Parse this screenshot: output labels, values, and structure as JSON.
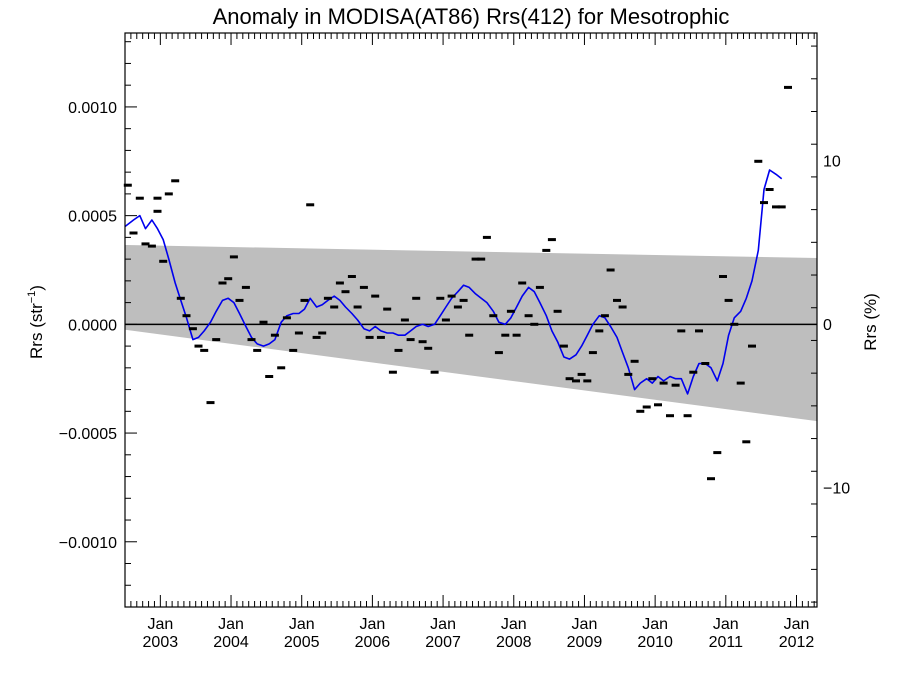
{
  "chart_data": {
    "type": "line",
    "title": "Anomaly in MODISA(AT86) Rrs(412) for Mesotrophic",
    "ylabel_main": "Rrs (str",
    "ylabel_sup": "−1",
    "ylabel_close": ")",
    "ylabel_right": "Rrs (%)",
    "xlim": [
      2002.5,
      2012.29
    ],
    "ylim": [
      -0.0013,
      0.00134
    ],
    "y2lim": [
      -17.3,
      17.8
    ],
    "y_ticks": [
      {
        "value": 0.001,
        "label": "0.0010"
      },
      {
        "value": 0.0005,
        "label": "0.0005"
      },
      {
        "value": 0.0,
        "label": "0.0000"
      },
      {
        "value": -0.0005,
        "label": "−0.0005"
      },
      {
        "value": -0.001,
        "label": "−0.0010"
      }
    ],
    "y2_ticks": [
      {
        "value": 10,
        "label": "10"
      },
      {
        "value": 0,
        "label": "0"
      },
      {
        "value": -10,
        "label": "−10"
      }
    ],
    "x_ticks": [
      {
        "value": 2003.0,
        "line1": "Jan",
        "line2": "2003"
      },
      {
        "value": 2004.0,
        "line1": "Jan",
        "line2": "2004"
      },
      {
        "value": 2005.0,
        "line1": "Jan",
        "line2": "2005"
      },
      {
        "value": 2006.0,
        "line1": "Jan",
        "line2": "2006"
      },
      {
        "value": 2007.0,
        "line1": "Jan",
        "line2": "2007"
      },
      {
        "value": 2008.0,
        "line1": "Jan",
        "line2": "2008"
      },
      {
        "value": 2009.0,
        "line1": "Jan",
        "line2": "2009"
      },
      {
        "value": 2010.0,
        "line1": "Jan",
        "line2": "2010"
      },
      {
        "value": 2011.0,
        "line1": "Jan",
        "line2": "2011"
      },
      {
        "value": 2012.0,
        "line1": "Jan",
        "line2": "2012"
      }
    ],
    "band": {
      "color": "#bebebe",
      "upper": [
        [
          2002.5,
          0.000365
        ],
        [
          2012.29,
          0.000305
        ]
      ],
      "lower": [
        [
          2002.5,
          -2.5e-05
        ],
        [
          2012.29,
          -0.000445
        ]
      ]
    },
    "monthly_points": [
      [
        2002.54,
        0.00064
      ],
      [
        2002.62,
        0.00042
      ],
      [
        2002.71,
        0.00058
      ],
      [
        2002.79,
        0.00037
      ],
      [
        2002.88,
        0.00036
      ],
      [
        2002.96,
        0.00052
      ],
      [
        2002.96,
        0.00058
      ],
      [
        2003.04,
        0.00029
      ],
      [
        2003.12,
        0.0006
      ],
      [
        2003.21,
        0.00066
      ],
      [
        2003.29,
        0.00012
      ],
      [
        2003.37,
        4e-05
      ],
      [
        2003.46,
        -2e-05
      ],
      [
        2003.54,
        -0.0001
      ],
      [
        2003.62,
        -0.00012
      ],
      [
        2003.71,
        -0.00036
      ],
      [
        2003.79,
        -7e-05
      ],
      [
        2003.88,
        0.00019
      ],
      [
        2003.96,
        0.00021
      ],
      [
        2004.04,
        0.00031
      ],
      [
        2004.12,
        0.00011
      ],
      [
        2004.21,
        0.00017
      ],
      [
        2004.29,
        -7e-05
      ],
      [
        2004.37,
        -0.00012
      ],
      [
        2004.46,
        1e-05
      ],
      [
        2004.54,
        -0.00024
      ],
      [
        2004.62,
        -5e-05
      ],
      [
        2004.71,
        -0.0002
      ],
      [
        2004.79,
        3e-05
      ],
      [
        2004.88,
        -0.00012
      ],
      [
        2004.96,
        -4e-05
      ],
      [
        2005.04,
        0.00011
      ],
      [
        2005.12,
        0.00055
      ],
      [
        2005.21,
        -6e-05
      ],
      [
        2005.29,
        -4e-05
      ],
      [
        2005.37,
        0.00012
      ],
      [
        2005.46,
        8e-05
      ],
      [
        2005.54,
        0.00019
      ],
      [
        2005.62,
        0.00015
      ],
      [
        2005.71,
        0.00022
      ],
      [
        2005.79,
        8e-05
      ],
      [
        2005.88,
        0.00017
      ],
      [
        2005.96,
        -6e-05
      ],
      [
        2006.04,
        0.00013
      ],
      [
        2006.12,
        -6e-05
      ],
      [
        2006.21,
        7e-05
      ],
      [
        2006.29,
        -0.00022
      ],
      [
        2006.37,
        -0.00012
      ],
      [
        2006.46,
        2e-05
      ],
      [
        2006.54,
        -7e-05
      ],
      [
        2006.62,
        0.00012
      ],
      [
        2006.71,
        -8e-05
      ],
      [
        2006.79,
        -0.00011
      ],
      [
        2006.88,
        -0.00022
      ],
      [
        2006.96,
        0.00012
      ],
      [
        2007.04,
        2e-05
      ],
      [
        2007.12,
        0.00013
      ],
      [
        2007.21,
        8e-05
      ],
      [
        2007.29,
        0.00011
      ],
      [
        2007.37,
        -5e-05
      ],
      [
        2007.46,
        0.0003
      ],
      [
        2007.54,
        0.0003
      ],
      [
        2007.62,
        0.0004
      ],
      [
        2007.71,
        4e-05
      ],
      [
        2007.79,
        -0.00013
      ],
      [
        2007.88,
        -5e-05
      ],
      [
        2007.96,
        6e-05
      ],
      [
        2008.04,
        -5e-05
      ],
      [
        2008.12,
        0.00019
      ],
      [
        2008.21,
        4e-05
      ],
      [
        2008.29,
        0.0
      ],
      [
        2008.37,
        0.00017
      ],
      [
        2008.46,
        0.00034
      ],
      [
        2008.54,
        0.00039
      ],
      [
        2008.62,
        6e-05
      ],
      [
        2008.71,
        -0.0001
      ],
      [
        2008.79,
        -0.00025
      ],
      [
        2008.88,
        -0.00026
      ],
      [
        2008.96,
        -0.00023
      ],
      [
        2009.04,
        -0.00026
      ],
      [
        2009.12,
        -0.00013
      ],
      [
        2009.21,
        -3e-05
      ],
      [
        2009.29,
        4e-05
      ],
      [
        2009.37,
        0.00025
      ],
      [
        2009.46,
        0.00011
      ],
      [
        2009.54,
        8e-05
      ],
      [
        2009.62,
        -0.00023
      ],
      [
        2009.71,
        -0.00017
      ],
      [
        2009.79,
        -0.0004
      ],
      [
        2009.88,
        -0.00038
      ],
      [
        2009.96,
        -0.00025
      ],
      [
        2010.04,
        -0.00037
      ],
      [
        2010.12,
        -0.00027
      ],
      [
        2010.21,
        -0.00042
      ],
      [
        2010.29,
        -0.00028
      ],
      [
        2010.37,
        -3e-05
      ],
      [
        2010.46,
        -0.00042
      ],
      [
        2010.54,
        -0.00022
      ],
      [
        2010.62,
        -3e-05
      ],
      [
        2010.71,
        -0.00018
      ],
      [
        2010.79,
        -0.00071
      ],
      [
        2010.88,
        -0.00059
      ],
      [
        2010.96,
        0.00022
      ],
      [
        2011.04,
        0.00011
      ],
      [
        2011.12,
        0.0
      ],
      [
        2011.21,
        -0.00027
      ],
      [
        2011.29,
        -0.00054
      ],
      [
        2011.37,
        -0.0001
      ],
      [
        2011.46,
        0.00075
      ],
      [
        2011.54,
        0.00056
      ],
      [
        2011.62,
        0.00062
      ],
      [
        2011.71,
        0.00054
      ],
      [
        2011.79,
        0.00054
      ],
      [
        2011.88,
        0.00109
      ]
    ],
    "series": [
      {
        "color": "#0000ee",
        "points": [
          [
            2002.5,
            0.00045
          ],
          [
            2002.62,
            0.00048
          ],
          [
            2002.71,
            0.0005
          ],
          [
            2002.79,
            0.00044
          ],
          [
            2002.88,
            0.00048
          ],
          [
            2002.96,
            0.00044
          ],
          [
            2003.04,
            0.00039
          ],
          [
            2003.12,
            0.0003
          ],
          [
            2003.21,
            0.00019
          ],
          [
            2003.29,
            0.00011
          ],
          [
            2003.37,
            3e-05
          ],
          [
            2003.46,
            -7e-05
          ],
          [
            2003.54,
            -6e-05
          ],
          [
            2003.62,
            -3e-05
          ],
          [
            2003.71,
            1e-05
          ],
          [
            2003.79,
            6e-05
          ],
          [
            2003.88,
            0.00011
          ],
          [
            2003.96,
            0.00012
          ],
          [
            2004.04,
            0.0001
          ],
          [
            2004.12,
            5e-05
          ],
          [
            2004.21,
            -1e-05
          ],
          [
            2004.29,
            -6e-05
          ],
          [
            2004.37,
            -9e-05
          ],
          [
            2004.46,
            -0.0001
          ],
          [
            2004.54,
            -9e-05
          ],
          [
            2004.62,
            -7e-05
          ],
          [
            2004.71,
            1e-05
          ],
          [
            2004.79,
            4e-05
          ],
          [
            2004.88,
            5e-05
          ],
          [
            2004.96,
            5e-05
          ],
          [
            2005.04,
            7e-05
          ],
          [
            2005.12,
            0.00012
          ],
          [
            2005.21,
            8e-05
          ],
          [
            2005.29,
            9e-05
          ],
          [
            2005.37,
            0.00011
          ],
          [
            2005.46,
            0.00013
          ],
          [
            2005.54,
            0.00011
          ],
          [
            2005.62,
            8e-05
          ],
          [
            2005.71,
            5e-05
          ],
          [
            2005.79,
            2e-05
          ],
          [
            2005.88,
            -2e-05
          ],
          [
            2005.96,
            -3e-05
          ],
          [
            2006.04,
            -1e-05
          ],
          [
            2006.12,
            -3e-05
          ],
          [
            2006.21,
            -4e-05
          ],
          [
            2006.29,
            -4e-05
          ],
          [
            2006.37,
            -5e-05
          ],
          [
            2006.46,
            -5e-05
          ],
          [
            2006.54,
            -3e-05
          ],
          [
            2006.62,
            -1e-05
          ],
          [
            2006.71,
            0.0
          ],
          [
            2006.79,
            -1e-05
          ],
          [
            2006.88,
            0.0
          ],
          [
            2006.96,
            4e-05
          ],
          [
            2007.04,
            8e-05
          ],
          [
            2007.12,
            0.00012
          ],
          [
            2007.21,
            0.00015
          ],
          [
            2007.29,
            0.00018
          ],
          [
            2007.37,
            0.00017
          ],
          [
            2007.46,
            0.00014
          ],
          [
            2007.54,
            0.00012
          ],
          [
            2007.62,
            0.0001
          ],
          [
            2007.71,
            6e-05
          ],
          [
            2007.79,
            1e-05
          ],
          [
            2007.88,
            0.0
          ],
          [
            2007.96,
            3e-05
          ],
          [
            2008.04,
            8e-05
          ],
          [
            2008.12,
            0.00013
          ],
          [
            2008.21,
            0.00017
          ],
          [
            2008.29,
            0.00015
          ],
          [
            2008.37,
            0.0001
          ],
          [
            2008.46,
            4e-05
          ],
          [
            2008.54,
            -3e-05
          ],
          [
            2008.62,
            -8e-05
          ],
          [
            2008.71,
            -0.00015
          ],
          [
            2008.79,
            -0.00016
          ],
          [
            2008.88,
            -0.00014
          ],
          [
            2008.96,
            -0.0001
          ],
          [
            2009.04,
            -5e-05
          ],
          [
            2009.12,
            0.0
          ],
          [
            2009.21,
            4e-05
          ],
          [
            2009.29,
            3e-05
          ],
          [
            2009.37,
            -1e-05
          ],
          [
            2009.46,
            -6e-05
          ],
          [
            2009.54,
            -0.00013
          ],
          [
            2009.62,
            -0.0002
          ],
          [
            2009.71,
            -0.0003
          ],
          [
            2009.79,
            -0.00027
          ],
          [
            2009.88,
            -0.00025
          ],
          [
            2009.96,
            -0.00027
          ],
          [
            2010.04,
            -0.00024
          ],
          [
            2010.12,
            -0.00026
          ],
          [
            2010.21,
            -0.00024
          ],
          [
            2010.29,
            -0.00025
          ],
          [
            2010.37,
            -0.00025
          ],
          [
            2010.46,
            -0.00032
          ],
          [
            2010.54,
            -0.00024
          ],
          [
            2010.62,
            -0.00018
          ],
          [
            2010.71,
            -0.00018
          ],
          [
            2010.79,
            -0.0002
          ],
          [
            2010.88,
            -0.00026
          ],
          [
            2010.96,
            -0.00018
          ],
          [
            2011.04,
            -5e-05
          ],
          [
            2011.12,
            3e-05
          ],
          [
            2011.21,
            6e-05
          ],
          [
            2011.29,
            0.00012
          ],
          [
            2011.37,
            0.0002
          ],
          [
            2011.46,
            0.00034
          ],
          [
            2011.54,
            0.00062
          ],
          [
            2011.62,
            0.00071
          ],
          [
            2011.71,
            0.00069
          ],
          [
            2011.79,
            0.00067
          ]
        ]
      }
    ],
    "zero_line": true,
    "grid": false,
    "legend": "none"
  }
}
